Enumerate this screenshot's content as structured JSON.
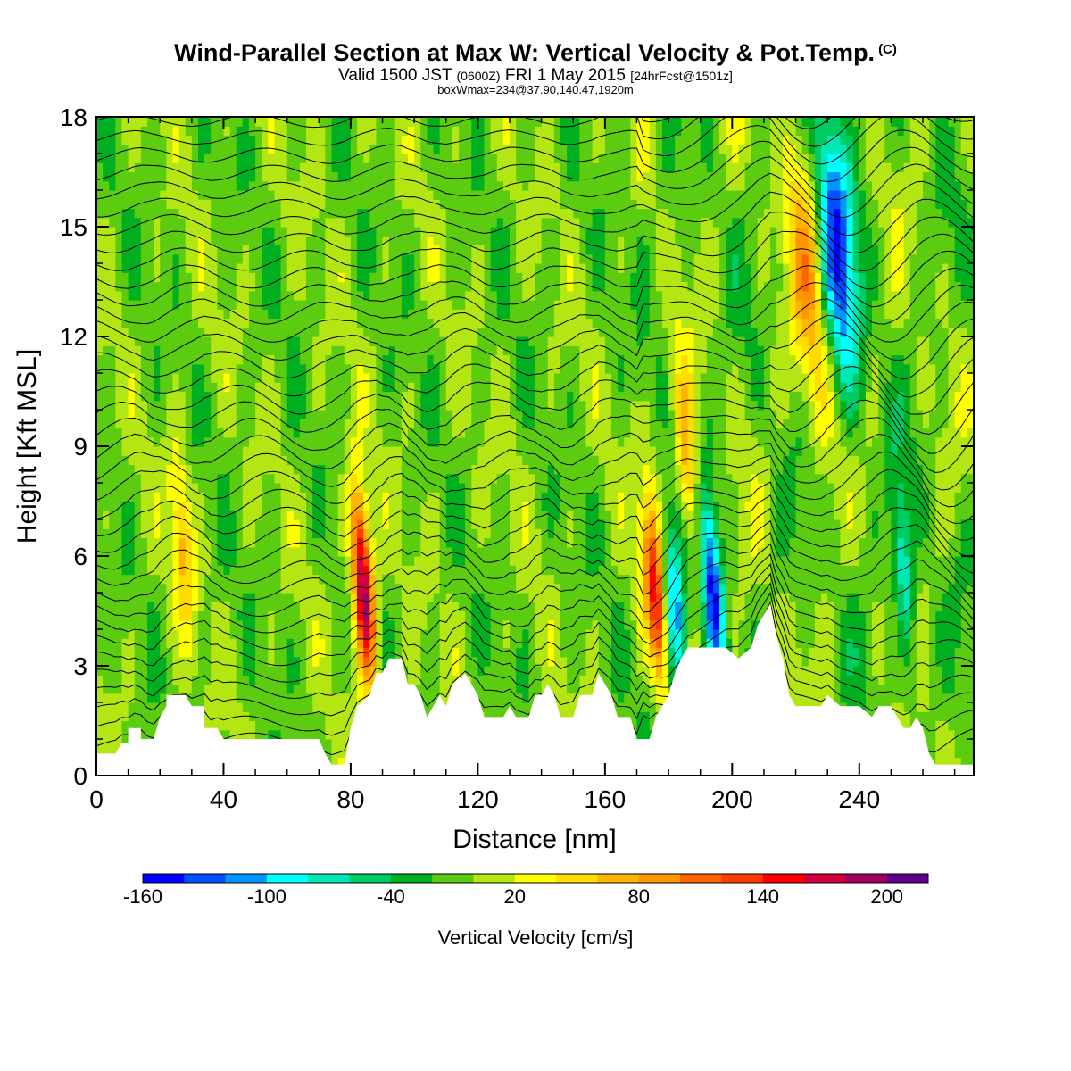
{
  "header": {
    "title": "Wind-Parallel Section at Max W: Vertical Velocity & Pot.Temp.",
    "copyright": "(C)",
    "valid_prefix": "Valid 1500 JST",
    "valid_zulu": "(0600Z)",
    "valid_date": "FRI 1 May 2015",
    "forecast_tag": "[24hrFcst@1501z]",
    "box_info": "boxWmax=234@37.90,140.47,1920m"
  },
  "chart_data": {
    "type": "heatmap",
    "title": "Wind-Parallel Section at Max W: Vertical Velocity & Pot.Temp.",
    "xlabel": "Distance [nm]",
    "ylabel": "Height [Kft MSL]",
    "xlim": [
      0,
      276
    ],
    "ylim": [
      0,
      18
    ],
    "xticks": [
      0,
      40,
      80,
      120,
      160,
      200,
      240
    ],
    "yticks": [
      0,
      3,
      6,
      9,
      12,
      15,
      18
    ],
    "colorbar": {
      "label": "Vertical Velocity [cm/s]",
      "min": -160,
      "max": 220,
      "step": 20,
      "tick_values": [
        -160,
        -100,
        -40,
        20,
        80,
        140,
        200
      ],
      "colors": [
        "#0000ff",
        "#0050ff",
        "#0096ff",
        "#00ffff",
        "#00e8b8",
        "#00cc66",
        "#00b020",
        "#5ccc10",
        "#b4e614",
        "#ffff00",
        "#ffdc00",
        "#ffb400",
        "#ff9600",
        "#ff6400",
        "#ff3c00",
        "#ff0000",
        "#d2003c",
        "#a00064",
        "#60008c"
      ]
    },
    "terrain_kft": [
      [
        0,
        0.6
      ],
      [
        6,
        0.6
      ],
      [
        8,
        0.9
      ],
      [
        10,
        0.9
      ],
      [
        10,
        1.3
      ],
      [
        14,
        1.3
      ],
      [
        14,
        1.0
      ],
      [
        18,
        1.0
      ],
      [
        20,
        1.6
      ],
      [
        22,
        1.9
      ],
      [
        22,
        2.2
      ],
      [
        28,
        2.2
      ],
      [
        30,
        1.9
      ],
      [
        34,
        1.9
      ],
      [
        34,
        1.3
      ],
      [
        38,
        1.3
      ],
      [
        40,
        1.0
      ],
      [
        70,
        1.0
      ],
      [
        72,
        0.6
      ],
      [
        74,
        0.3
      ],
      [
        78,
        0.3
      ],
      [
        80,
        1.3
      ],
      [
        82,
        1.9
      ],
      [
        86,
        2.2
      ],
      [
        88,
        2.8
      ],
      [
        90,
        2.8
      ],
      [
        92,
        3.2
      ],
      [
        96,
        3.2
      ],
      [
        98,
        2.5
      ],
      [
        100,
        2.5
      ],
      [
        102,
        2.2
      ],
      [
        104,
        1.6
      ],
      [
        108,
        2.2
      ],
      [
        110,
        1.9
      ],
      [
        112,
        2.5
      ],
      [
        116,
        2.8
      ],
      [
        120,
        2.2
      ],
      [
        122,
        1.6
      ],
      [
        128,
        1.6
      ],
      [
        130,
        1.9
      ],
      [
        132,
        1.6
      ],
      [
        136,
        1.6
      ],
      [
        138,
        2.2
      ],
      [
        140,
        2.2
      ],
      [
        142,
        2.5
      ],
      [
        144,
        2.2
      ],
      [
        146,
        1.6
      ],
      [
        150,
        1.6
      ],
      [
        152,
        2.2
      ],
      [
        156,
        2.2
      ],
      [
        158,
        2.8
      ],
      [
        160,
        2.5
      ],
      [
        162,
        2.2
      ],
      [
        164,
        1.6
      ],
      [
        168,
        1.6
      ],
      [
        170,
        1.0
      ],
      [
        174,
        1.0
      ],
      [
        176,
        1.6
      ],
      [
        178,
        1.9
      ],
      [
        180,
        2.2
      ],
      [
        182,
        2.8
      ],
      [
        184,
        3.2
      ],
      [
        186,
        3.5
      ],
      [
        196,
        3.5
      ],
      [
        198,
        3.5
      ],
      [
        202,
        3.2
      ],
      [
        206,
        3.5
      ],
      [
        208,
        4.1
      ],
      [
        212,
        4.7
      ],
      [
        214,
        3.8
      ],
      [
        216,
        3.2
      ],
      [
        218,
        2.2
      ],
      [
        220,
        1.9
      ],
      [
        228,
        1.9
      ],
      [
        230,
        2.2
      ],
      [
        234,
        1.9
      ],
      [
        240,
        1.9
      ],
      [
        244,
        1.6
      ],
      [
        246,
        1.9
      ],
      [
        250,
        1.9
      ],
      [
        252,
        1.6
      ],
      [
        254,
        1.3
      ],
      [
        256,
        1.3
      ],
      [
        258,
        1.6
      ],
      [
        260,
        1.3
      ],
      [
        262,
        0.6
      ],
      [
        264,
        0.3
      ],
      [
        276,
        0.3
      ]
    ],
    "updraft_cores": [
      {
        "x": 84,
        "z": 5.2,
        "w_max": 220
      },
      {
        "x": 176,
        "z": 4.8,
        "w_max": 160
      },
      {
        "x": 186,
        "z": 8.5,
        "w_max": 100
      },
      {
        "x": 224,
        "z": 13.5,
        "w_max": 90
      },
      {
        "x": 27,
        "z": 6.5,
        "w_max": 80
      }
    ],
    "downdraft_cores": [
      {
        "x": 233,
        "z": 14.5,
        "w_min": -140
      },
      {
        "x": 194,
        "z": 5.0,
        "w_min": -150
      },
      {
        "x": 182,
        "z": 4.5,
        "w_min": -120
      },
      {
        "x": 254,
        "z": 5.5,
        "w_min": -90
      }
    ]
  }
}
